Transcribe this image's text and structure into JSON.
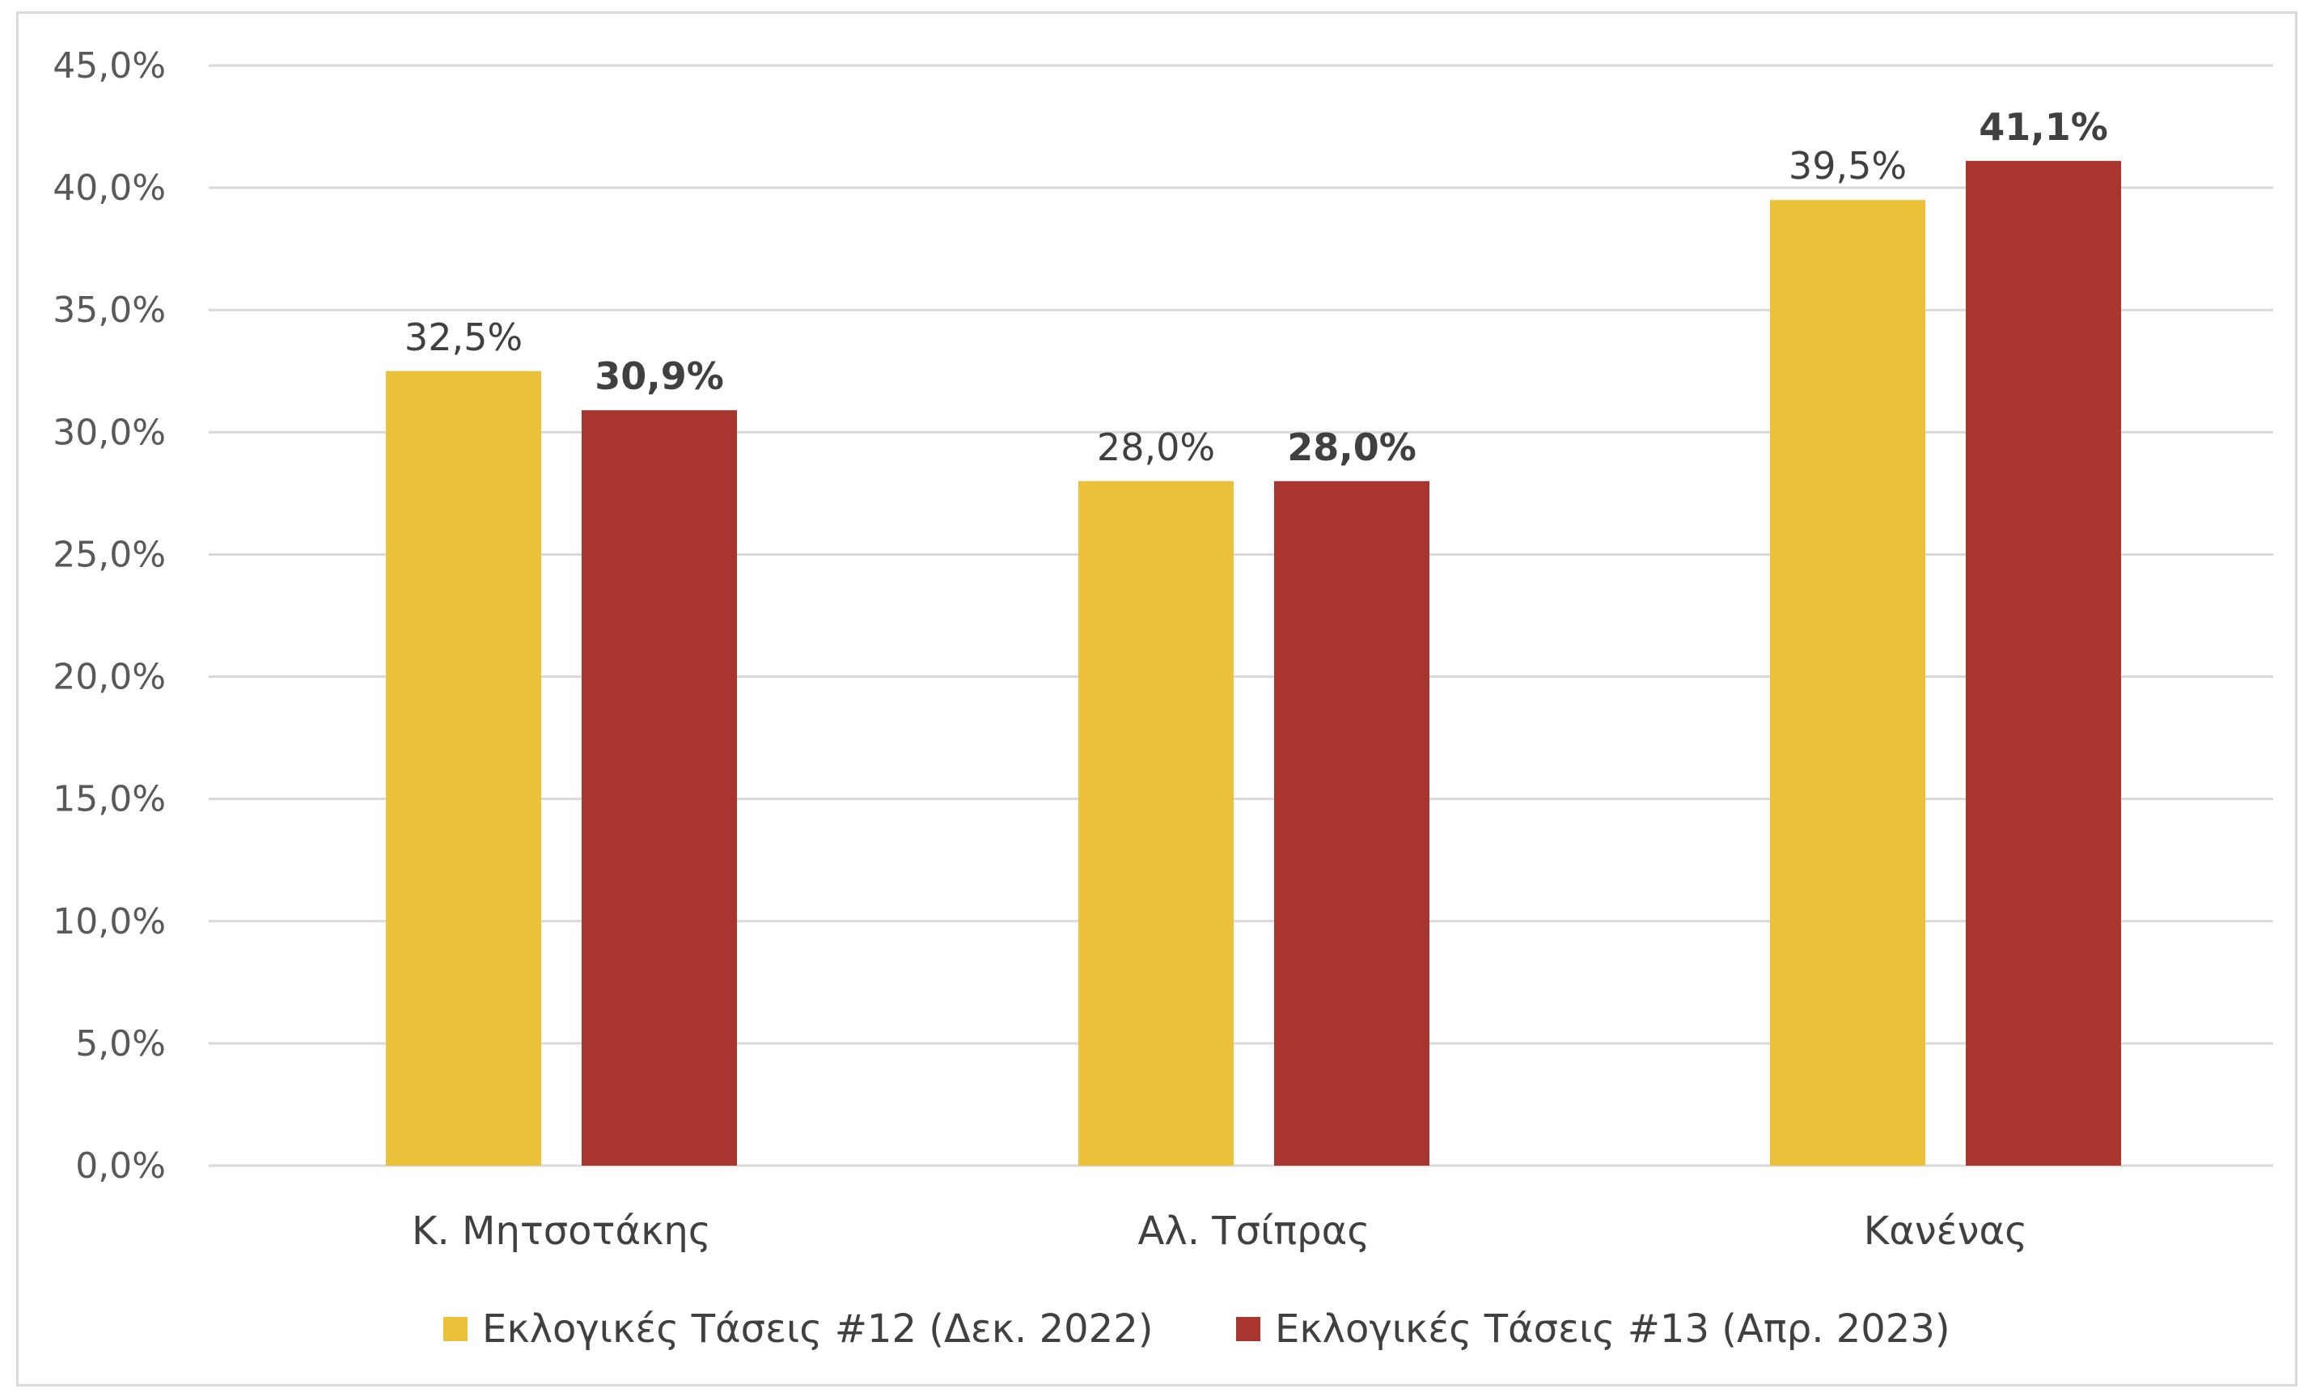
{
  "chart_data": {
    "type": "bar",
    "categories": [
      "Κ. Μητσοτάκης",
      "Αλ. Τσίπρας",
      "Κανένας"
    ],
    "series": [
      {
        "name": "Εκλογικές Τάσεις #12 (Δεκ. 2022)",
        "values": [
          32.5,
          28.0,
          39.5
        ],
        "labels": [
          "32,5%",
          "28,0%",
          "39,5%"
        ],
        "color": "#EBC13A",
        "label_bold": false
      },
      {
        "name": "Εκλογικές Τάσεις #13 (Απρ. 2023)",
        "values": [
          30.9,
          28.0,
          41.1
        ],
        "labels": [
          "30,9%",
          "28,0%",
          "41,1%"
        ],
        "color": "#A8362E",
        "label_bold": true
      }
    ],
    "y_ticks": [
      0,
      5,
      10,
      15,
      20,
      25,
      30,
      35,
      40,
      45
    ],
    "y_tick_labels": [
      "0,0%",
      "5,0%",
      "10,0%",
      "15,0%",
      "20,0%",
      "25,0%",
      "30,0%",
      "35,0%",
      "40,0%",
      "45,0%"
    ],
    "ylim": [
      0,
      45
    ],
    "grid": true,
    "gridline_color": "#D9D9D9",
    "legend": "bottom"
  }
}
